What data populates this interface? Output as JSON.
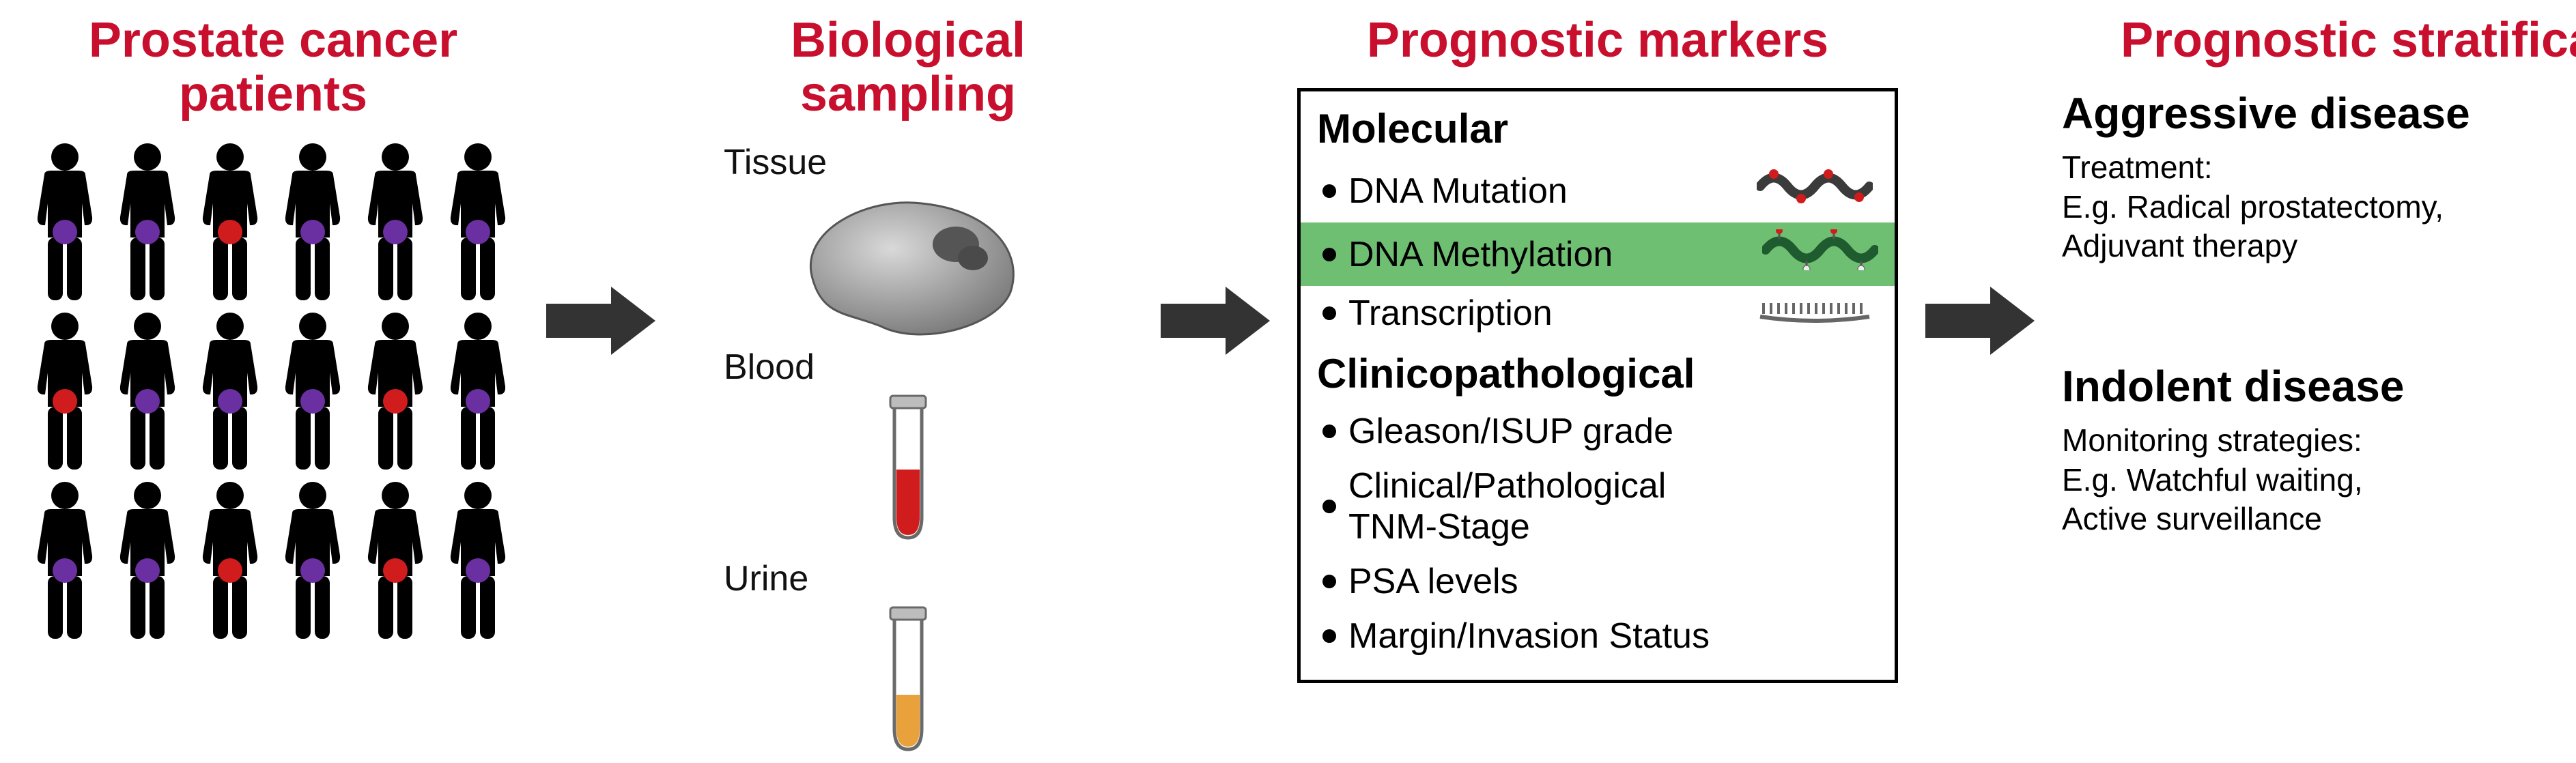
{
  "colors": {
    "heading": "#c8102e",
    "text": "#111111",
    "box_border": "#000000",
    "highlight_bg": "#6fbf73",
    "arrow": "#333333",
    "person_body": "#000000",
    "pelvis_aggressive": "#d01c1c",
    "pelvis_indolent": "#6a2fa0",
    "tissue_fill": "#a8a8a8",
    "tissue_tumor": "#555555",
    "blood": "#d01c1c",
    "urine": "#e9a13b",
    "tube_stroke": "#6a6a6a",
    "dna_dark": "#3b3b3b",
    "dna_green": "#1e5b2e",
    "dna_marks": "#d01c1c",
    "transcription": "#666666"
  },
  "fontsizes": {
    "section_title": 72,
    "sample_label": 52,
    "marker_heading": 60,
    "marker_item": 52,
    "strat_heading": 64,
    "strat_sub": 46
  },
  "sections": {
    "patients_title": "Prostate cancer\npatients",
    "sampling_title": "Biological sampling",
    "markers_title": "Prognostic markers",
    "stratification_title": "Prognostic stratification"
  },
  "patients_grid": {
    "rows": 3,
    "cols": 6,
    "pelvis_colors": [
      [
        "indolent",
        "indolent",
        "aggressive",
        "indolent",
        "indolent",
        "indolent"
      ],
      [
        "aggressive",
        "indolent",
        "indolent",
        "indolent",
        "aggressive",
        "indolent"
      ],
      [
        "indolent",
        "indolent",
        "aggressive",
        "indolent",
        "aggressive",
        "indolent"
      ]
    ]
  },
  "sampling": {
    "labels": {
      "tissue": "Tissue",
      "blood": "Blood",
      "urine": "Urine"
    }
  },
  "markers": {
    "molecular_heading": "Molecular",
    "clinicopath_heading": "Clinicopathological",
    "molecular": [
      {
        "label": "DNA Mutation",
        "icon": "dna-dark",
        "highlight": false
      },
      {
        "label": "DNA Methylation",
        "icon": "dna-green",
        "highlight": true
      },
      {
        "label": "Transcription",
        "icon": "transcription",
        "highlight": false
      }
    ],
    "clinicopath": [
      {
        "label": "Gleason/ISUP grade"
      },
      {
        "label": "Clinical/Pathological\nTNM-Stage"
      },
      {
        "label": "PSA levels"
      },
      {
        "label": "Margin/Invasion Status"
      }
    ]
  },
  "stratification": {
    "aggressive": {
      "heading": "Aggressive disease",
      "sub": "Treatment:\nE.g. Radical prostatectomy,\nAdjuvant therapy",
      "pelvis": "aggressive"
    },
    "indolent": {
      "heading": "Indolent disease",
      "sub": "Monitoring strategies:\nE.g. Watchful waiting,\nActive surveillance",
      "pelvis": "indolent"
    }
  }
}
